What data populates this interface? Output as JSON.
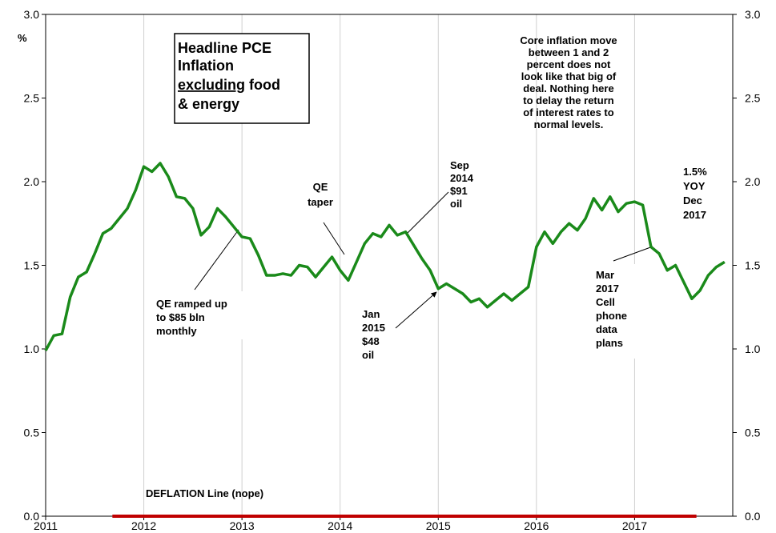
{
  "chart_data": {
    "type": "line",
    "title": [
      "Headline PCE",
      "Inflation",
      "excluding",
      "food",
      "& energy"
    ],
    "y_label": "%",
    "color": "#1a8a1a",
    "x": [
      2011,
      2011.083,
      2011.167,
      2011.25,
      2011.333,
      2011.417,
      2011.5,
      2011.583,
      2011.667,
      2011.75,
      2011.833,
      2011.917,
      2012,
      2012.083,
      2012.167,
      2012.25,
      2012.333,
      2012.417,
      2012.5,
      2012.583,
      2012.667,
      2012.75,
      2012.833,
      2012.917,
      2013,
      2013.083,
      2013.167,
      2013.25,
      2013.333,
      2013.417,
      2013.5,
      2013.583,
      2013.667,
      2013.75,
      2013.833,
      2013.917,
      2014,
      2014.083,
      2014.167,
      2014.25,
      2014.333,
      2014.417,
      2014.5,
      2014.583,
      2014.667,
      2014.75,
      2014.833,
      2014.917,
      2015,
      2015.083,
      2015.167,
      2015.25,
      2015.333,
      2015.417,
      2015.5,
      2015.583,
      2015.667,
      2015.75,
      2015.833,
      2015.917,
      2016,
      2016.083,
      2016.167,
      2016.25,
      2016.333,
      2016.417,
      2016.5,
      2016.583,
      2016.667,
      2016.75,
      2016.833,
      2016.917,
      2017,
      2017.083,
      2017.167,
      2017.25,
      2017.333,
      2017.417,
      2017.5,
      2017.583,
      2017.667,
      2017.75,
      2017.833,
      2017.917
    ],
    "values": [
      0.99,
      1.08,
      1.09,
      1.31,
      1.43,
      1.46,
      1.57,
      1.69,
      1.72,
      1.78,
      1.84,
      1.95,
      2.09,
      2.06,
      2.11,
      2.03,
      1.91,
      1.9,
      1.84,
      1.68,
      1.73,
      1.84,
      1.79,
      1.73,
      1.67,
      1.66,
      1.56,
      1.44,
      1.44,
      1.45,
      1.44,
      1.5,
      1.49,
      1.43,
      1.49,
      1.55,
      1.47,
      1.41,
      1.52,
      1.63,
      1.69,
      1.67,
      1.74,
      1.68,
      1.7,
      1.62,
      1.54,
      1.47,
      1.36,
      1.39,
      1.36,
      1.33,
      1.28,
      1.3,
      1.25,
      1.29,
      1.33,
      1.29,
      1.33,
      1.37,
      1.61,
      1.7,
      1.63,
      1.7,
      1.75,
      1.71,
      1.78,
      1.9,
      1.83,
      1.91,
      1.82,
      1.87,
      1.88,
      1.86,
      1.61,
      1.57,
      1.47,
      1.5,
      1.4,
      1.3,
      1.35,
      1.44,
      1.49,
      1.52
    ],
    "xlim": [
      2011,
      2018
    ],
    "xticks": [
      2011,
      2012,
      2013,
      2014,
      2015,
      2016,
      2017
    ],
    "ylim": [
      0,
      3
    ],
    "yticks": [
      {
        "value": 0,
        "label": "0.0"
      },
      0.5,
      {
        "value": 1,
        "label": "1.0"
      },
      1.5,
      {
        "value": 2,
        "label": "2.0"
      },
      2.5,
      {
        "value": 3,
        "label": "3.0"
      }
    ],
    "y2lim": [
      0,
      3
    ],
    "y2ticks": [
      {
        "value": 0,
        "label": "0.0"
      },
      0.5,
      {
        "value": 1,
        "label": "1.0"
      },
      1.5,
      {
        "value": 2,
        "label": "2.0"
      },
      2.5,
      {
        "value": 3,
        "label": "3.0"
      }
    ],
    "grid": "x",
    "reference_line": {
      "label": "DEFLATION Line (nope)",
      "value": 0,
      "xrange": [
        2011.68,
        2017.63
      ],
      "color": "#c00000"
    },
    "annotations": [
      [
        "Core inflation move",
        "between 1 and 2",
        "percent does not",
        "look like that big of",
        "deal. Nothing here",
        "to delay the return",
        "of interest rates to",
        "normal levels."
      ],
      [
        "QE",
        "taper"
      ],
      [
        "Sep",
        "2014",
        "$91",
        "oil"
      ],
      [
        "1.5%",
        "YOY",
        "Dec",
        "2017"
      ],
      [
        "QE ramped up",
        "to $85 bln",
        "monthly"
      ],
      [
        "Jan",
        "2015",
        "$48",
        "oil"
      ],
      [
        "Mar",
        "2017",
        "Cell",
        "phone",
        "data",
        "plans"
      ]
    ]
  }
}
